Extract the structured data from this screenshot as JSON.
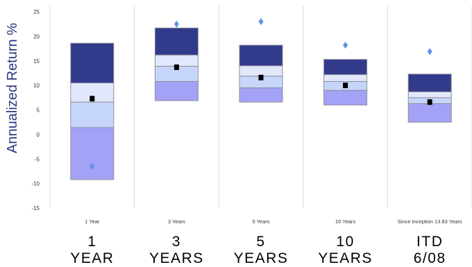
{
  "chart_data": {
    "type": "box",
    "ylabel": "Annualized Return  %",
    "ylim": [
      -15,
      25
    ],
    "yticks": [
      -15,
      -10,
      -5,
      0,
      5,
      10,
      15,
      20,
      25
    ],
    "grid": "vertical category dividers",
    "categories": [
      "1 Year",
      "3 Years",
      "5 Years",
      "10 Years",
      "Since Inception 13.83 Years"
    ],
    "big_labels": [
      [
        "1",
        "YEAR"
      ],
      [
        "3",
        "YEARS"
      ],
      [
        "5",
        "YEARS"
      ],
      [
        "10",
        "YEARS"
      ],
      [
        "ITD",
        "6/08"
      ]
    ],
    "boxes": [
      {
        "p5": -9.2,
        "p25": 1.4,
        "median": 6.6,
        "p75": 10.5,
        "p95": 18.6,
        "portfolio": 7.3,
        "benchmark": -6.5
      },
      {
        "p5": 6.9,
        "p25": 10.8,
        "median": 13.9,
        "p75": 16.2,
        "p95": 21.7,
        "portfolio": 13.7,
        "benchmark": 22.5
      },
      {
        "p5": 6.6,
        "p25": 9.5,
        "median": 11.9,
        "p75": 14.0,
        "p95": 18.2,
        "portfolio": 11.6,
        "benchmark": 23.0
      },
      {
        "p5": 6.0,
        "p25": 9.0,
        "median": 10.8,
        "p75": 12.2,
        "p95": 15.3,
        "portfolio": 10.0,
        "benchmark": 18.2
      },
      {
        "p5": 2.5,
        "p25": 6.3,
        "median": 7.5,
        "p75": 8.7,
        "p95": 12.3,
        "portfolio": 6.6,
        "benchmark": 16.9
      }
    ],
    "colors": {
      "top_band": "#323a8c",
      "upper_mid_band": "#e2e8fb",
      "lower_mid_band": "#c6d6fb",
      "bottom_band": "#a3a2f7",
      "band_border": "#8e8e9a",
      "portfolio_marker": "#000000",
      "benchmark_marker": "#5f8fe8",
      "axis_label": "#2f3680",
      "divider": "#d9d9d9"
    }
  }
}
